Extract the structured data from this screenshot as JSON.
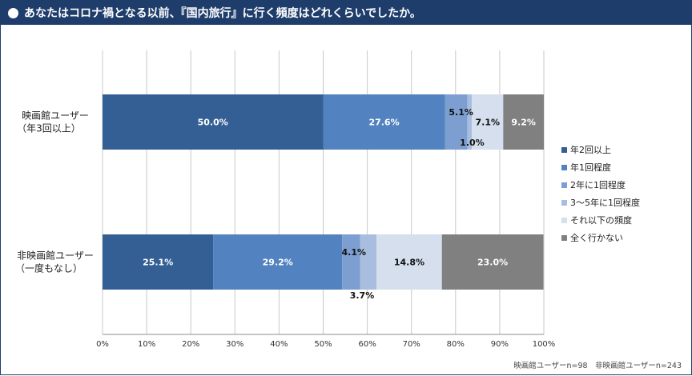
{
  "header": {
    "title": "あなたはコロナ禍となる以前、『国内旅行』に行く頻度はどれくらいでしたか。"
  },
  "note": "映画館ユーザーn=98　非映画館ユーザーn=243",
  "chart_data": {
    "type": "bar",
    "orientation": "horizontal-stacked-100",
    "categories": [
      [
        "映画館ユーザー",
        "（年3回以上）"
      ],
      [
        "非映画館ユーザー",
        "（一度もなし）"
      ]
    ],
    "series": [
      {
        "name": "年2回以上",
        "values": [
          50.0,
          25.1
        ],
        "labels": [
          "50.0%",
          "25.1%"
        ],
        "color": "#345f95",
        "text": "#ffffff"
      },
      {
        "name": "年1回程度",
        "values": [
          27.6,
          29.2
        ],
        "labels": [
          "27.6%",
          "29.2%"
        ],
        "color": "#5283c0",
        "text": "#ffffff"
      },
      {
        "name": "2年に1回程度",
        "values": [
          5.1,
          4.1
        ],
        "labels": [
          "5.1%",
          "4.1%"
        ],
        "color": "#7d9ed0",
        "text": "#111111"
      },
      {
        "name": "3～5年に1回程度",
        "values": [
          1.0,
          3.7
        ],
        "labels": [
          "1.0%",
          "3.7%"
        ],
        "color": "#a9bedf",
        "text": "#111111"
      },
      {
        "name": "それ以下の頻度",
        "values": [
          7.1,
          14.8
        ],
        "labels": [
          "7.1%",
          "14.8%"
        ],
        "color": "#d6dfee",
        "text": "#111111"
      },
      {
        "name": "全く行かない",
        "values": [
          9.2,
          23.0
        ],
        "labels": [
          "9.2%",
          "23.0%"
        ],
        "color": "#808080",
        "text": "#ffffff"
      }
    ],
    "xlim": [
      0,
      100
    ],
    "x_ticks": [
      "0%",
      "10%",
      "20%",
      "30%",
      "40%",
      "50%",
      "60%",
      "70%",
      "80%",
      "90%",
      "100%"
    ],
    "grid": true,
    "legend_position": "right"
  }
}
